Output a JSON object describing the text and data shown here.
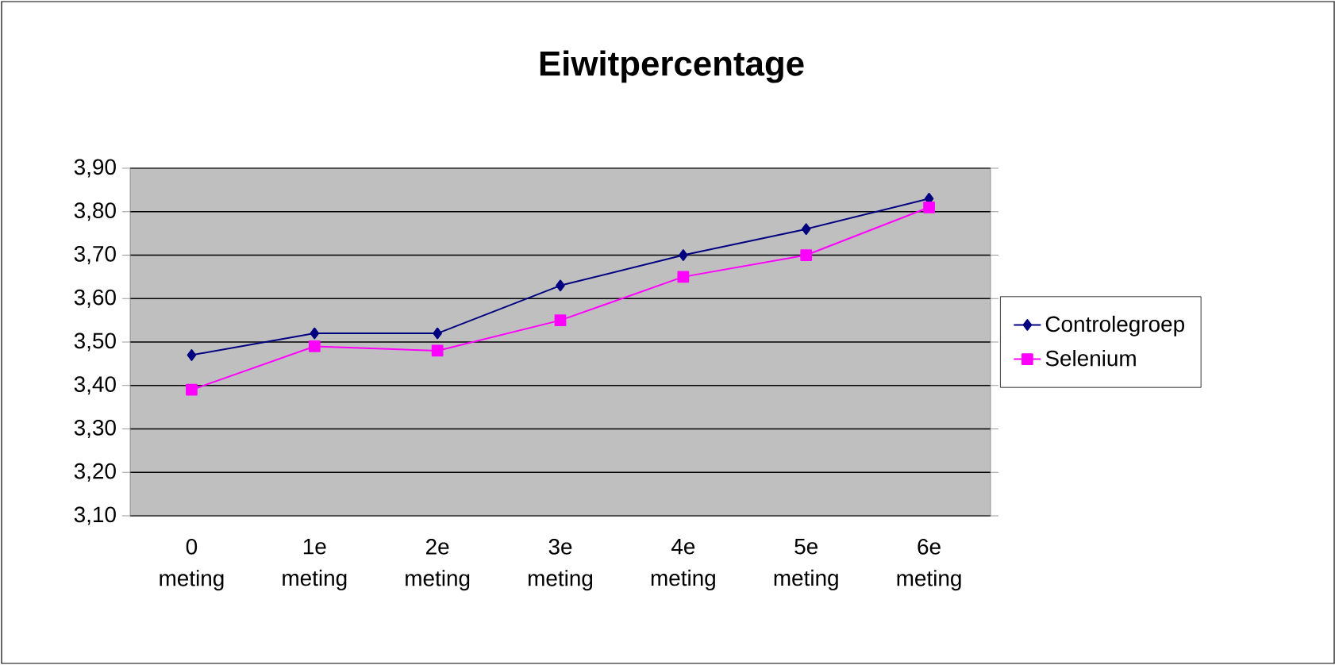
{
  "chart_data": {
    "type": "line",
    "title": "Eiwitpercentage",
    "categories": [
      "0 meting",
      "1e meting",
      "2e meting",
      "3e meting",
      "4e meting",
      "5e meting",
      "6e meting"
    ],
    "series": [
      {
        "name": "Controlegroep",
        "color": "#000080",
        "marker": "diamond",
        "values": [
          3.47,
          3.52,
          3.52,
          3.63,
          3.7,
          3.76,
          3.83
        ]
      },
      {
        "name": "Selenium",
        "color": "#ff00ff",
        "marker": "square",
        "values": [
          3.39,
          3.49,
          3.48,
          3.55,
          3.65,
          3.7,
          3.81
        ]
      }
    ],
    "ylim": [
      3.1,
      3.9
    ],
    "yticks": [
      {
        "value": 3.1,
        "label": "3,10"
      },
      {
        "value": 3.2,
        "label": "3,20"
      },
      {
        "value": 3.3,
        "label": "3,30"
      },
      {
        "value": 3.4,
        "label": "3,40"
      },
      {
        "value": 3.5,
        "label": "3,50"
      },
      {
        "value": 3.6,
        "label": "3,60"
      },
      {
        "value": 3.7,
        "label": "3,70"
      },
      {
        "value": 3.8,
        "label": "3,80"
      },
      {
        "value": 3.9,
        "label": "3,90"
      }
    ],
    "grid": "y",
    "legend": "right",
    "line_style": "solid"
  }
}
